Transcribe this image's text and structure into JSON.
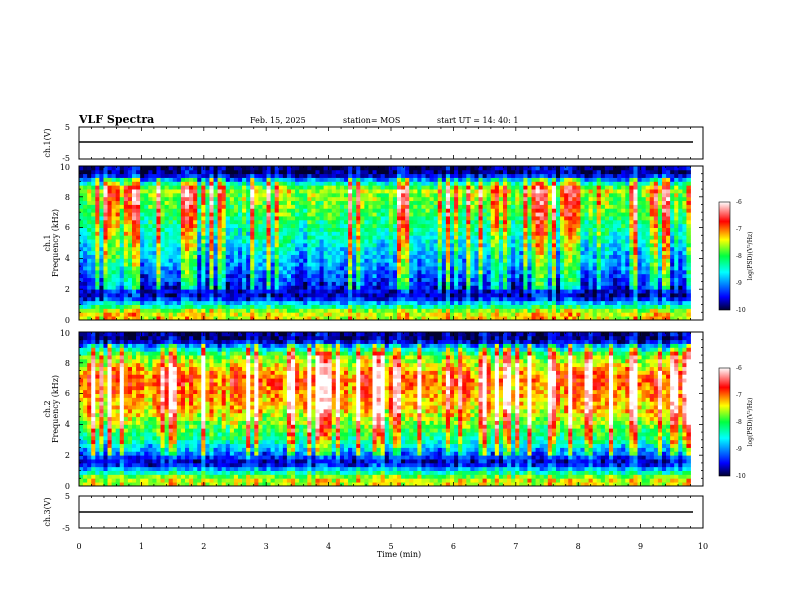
{
  "header": {
    "title": "VLF Spectra",
    "date": "Feb. 15, 2025",
    "station": "station= MOS",
    "start": "start  UT =   14: 40: 1"
  },
  "chart_data": [
    {
      "type": "line",
      "panel": "ch.1 voltage",
      "ylabel": "ch.1(V)",
      "ylim": [
        -5,
        5
      ],
      "yticks": [
        "5",
        "-5"
      ],
      "x": [
        0,
        9.8
      ],
      "values": [
        -1.0,
        -1.0
      ],
      "xlim": [
        0,
        10
      ]
    },
    {
      "type": "heatmap",
      "panel": "ch.1 spectrogram",
      "ylabel": "ch.1\nFrequency (kHz)",
      "ylim": [
        0,
        10
      ],
      "yticks": [
        "0",
        "2",
        "4",
        "6",
        "8",
        "10"
      ],
      "xlim": [
        0,
        10
      ],
      "data_xmax": 9.8,
      "colorbar": {
        "label": "log(PSD)(V²/Hz)",
        "range": [
          -10,
          -6
        ],
        "ticks": [
          "-6",
          "-7",
          "-8",
          "-9",
          "-10"
        ]
      },
      "band_levels": [
        {
          "f": 0.5,
          "level": -7.5
        },
        {
          "f": 1.5,
          "level": -9.8
        },
        {
          "f": 3.0,
          "level": -9.2
        },
        {
          "f": 5.0,
          "level": -8.6
        },
        {
          "f": 7.0,
          "level": -8.0
        },
        {
          "f": 8.5,
          "level": -7.6
        },
        {
          "f": 9.5,
          "level": -9.9
        }
      ]
    },
    {
      "type": "heatmap",
      "panel": "ch.2 spectrogram",
      "ylabel": "ch.2\nFrequency (kHz)",
      "ylim": [
        0,
        10
      ],
      "yticks": [
        "0",
        "2",
        "4",
        "6",
        "8",
        "10"
      ],
      "xlim": [
        0,
        10
      ],
      "data_xmax": 9.8,
      "colorbar": {
        "label": "log(PSD)(V²/Hz)",
        "range": [
          -10,
          -6
        ],
        "ticks": [
          "-6",
          "-7",
          "-8",
          "-9",
          "-10"
        ]
      },
      "band_levels": [
        {
          "f": 0.5,
          "level": -7.6
        },
        {
          "f": 1.5,
          "level": -9.8
        },
        {
          "f": 3.0,
          "level": -8.3
        },
        {
          "f": 5.0,
          "level": -7.3
        },
        {
          "f": 7.0,
          "level": -6.9
        },
        {
          "f": 8.5,
          "level": -7.8
        },
        {
          "f": 9.5,
          "level": -9.9
        }
      ]
    },
    {
      "type": "line",
      "panel": "ch.3 voltage",
      "ylabel": "ch.3(V)",
      "ylim": [
        -5,
        5
      ],
      "yticks": [
        "5",
        "-5"
      ],
      "x": [
        0,
        9.8
      ],
      "values": [
        -1.0,
        -1.0
      ],
      "xlim": [
        0,
        10
      ]
    }
  ],
  "x_axis": {
    "label": "Time  (min)",
    "ticks": [
      "0",
      "1",
      "2",
      "3",
      "4",
      "5",
      "6",
      "7",
      "8",
      "9",
      "10"
    ]
  },
  "colors": {
    "background": "#ffffff",
    "axes": "#000000",
    "colormap": [
      "#000030",
      "#0000ff",
      "#00ffff",
      "#00ff40",
      "#ffff00",
      "#ff0000",
      "#ffffff"
    ]
  }
}
